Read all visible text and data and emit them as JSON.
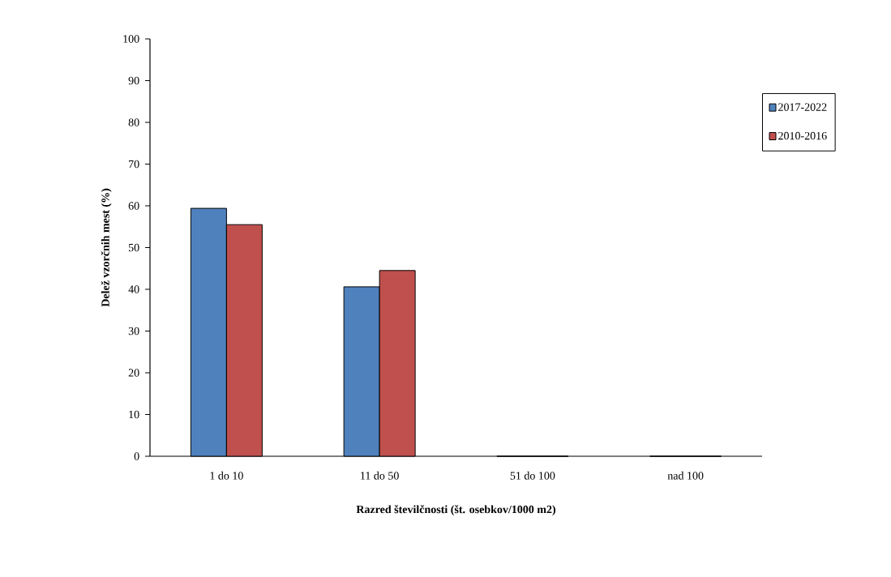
{
  "chart_data": {
    "type": "bar",
    "xlabel": "Razred številčnosti (št. osebkov/1000 m2)",
    "ylabel": "Delež vzorčnih mest (%)",
    "categories": [
      "1 do 10",
      "11 do 50",
      "51 do 100",
      "nad 100"
    ],
    "series": [
      {
        "name": "2017-2022",
        "color": "#4f81bd",
        "values": [
          59.4,
          40.6,
          0,
          0
        ]
      },
      {
        "name": "2010-2016",
        "color": "#c0504d",
        "values": [
          55.5,
          44.5,
          0,
          0
        ]
      }
    ],
    "ylim": [
      0,
      100
    ],
    "yticks": [
      0,
      10,
      20,
      30,
      40,
      50,
      60,
      70,
      80,
      90,
      100
    ],
    "grid": false,
    "legend": "right"
  }
}
